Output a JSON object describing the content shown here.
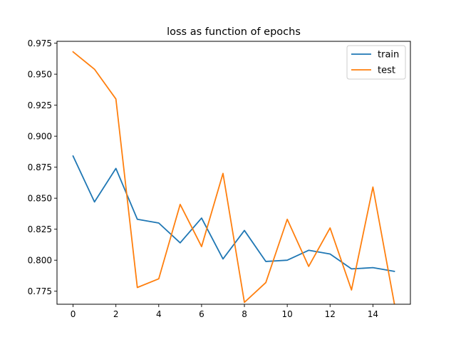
{
  "chart_data": {
    "type": "line",
    "title": "loss as function of epochs",
    "xlabel": "",
    "ylabel": "",
    "x": [
      0,
      1,
      2,
      3,
      4,
      5,
      6,
      7,
      8,
      9,
      10,
      11,
      12,
      13,
      14,
      15
    ],
    "xlim": [
      -0.75,
      15.75
    ],
    "ylim": [
      0.7645,
      0.9765
    ],
    "xticks": [
      0,
      2,
      4,
      6,
      8,
      10,
      12,
      14
    ],
    "xtick_labels": [
      "0",
      "2",
      "4",
      "6",
      "8",
      "10",
      "12",
      "14"
    ],
    "yticks": [
      0.775,
      0.8,
      0.825,
      0.85,
      0.875,
      0.9,
      0.925,
      0.95,
      0.975
    ],
    "ytick_labels": [
      "0.775",
      "0.800",
      "0.825",
      "0.850",
      "0.875",
      "0.900",
      "0.925",
      "0.950",
      "0.975"
    ],
    "grid": false,
    "legend_position": "top-right",
    "series": [
      {
        "name": "train",
        "color": "#1f77b4",
        "values": [
          0.884,
          0.847,
          0.874,
          0.833,
          0.83,
          0.814,
          0.834,
          0.801,
          0.824,
          0.799,
          0.8,
          0.808,
          0.805,
          0.793,
          0.794,
          0.791
        ]
      },
      {
        "name": "test",
        "color": "#ff7f0e",
        "values": [
          0.968,
          0.954,
          0.93,
          0.778,
          0.785,
          0.845,
          0.811,
          0.87,
          0.766,
          0.782,
          0.833,
          0.795,
          0.826,
          0.776,
          0.859,
          0.765
        ]
      }
    ]
  }
}
